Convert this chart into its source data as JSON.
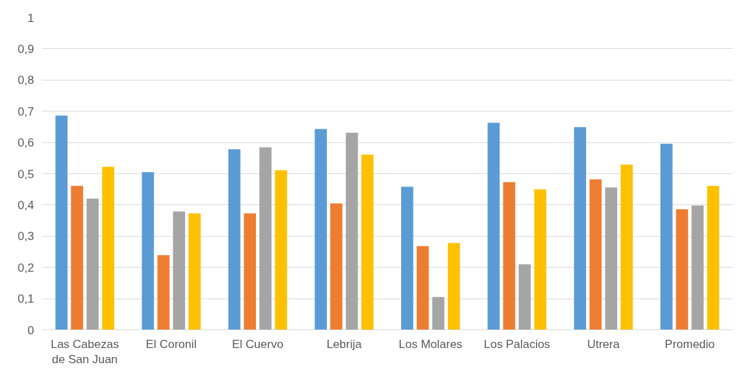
{
  "chart_data": {
    "type": "bar",
    "categories": [
      "Las Cabezas\nde San Juan",
      "El Coronil",
      "El Cuervo",
      "Lebrija",
      "Los Molares",
      "Los Palacios",
      "Utrera",
      "Promedio"
    ],
    "series": [
      {
        "color": "#5b9bd5",
        "values": [
          0.686,
          0.505,
          0.578,
          0.643,
          0.458,
          0.663,
          0.649,
          0.596
        ]
      },
      {
        "color": "#ed7d31",
        "values": [
          0.461,
          0.239,
          0.373,
          0.405,
          0.268,
          0.473,
          0.482,
          0.386
        ]
      },
      {
        "color": "#a5a5a5",
        "values": [
          0.42,
          0.379,
          0.584,
          0.631,
          0.105,
          0.21,
          0.456,
          0.398
        ]
      },
      {
        "color": "#ffc000",
        "values": [
          0.522,
          0.373,
          0.511,
          0.561,
          0.278,
          0.45,
          0.529,
          0.461
        ]
      }
    ],
    "ylim": [
      0,
      1
    ],
    "yticks": [
      0,
      {
        "value": 0.1,
        "label": "0,1"
      },
      {
        "value": 0.2,
        "label": "0,2"
      },
      {
        "value": 0.3,
        "label": "0,3"
      },
      {
        "value": 0.4,
        "label": "0,4"
      },
      {
        "value": 0.5,
        "label": "0,5"
      },
      {
        "value": 0.6,
        "label": "0,6"
      },
      {
        "value": 0.7,
        "label": "0,7"
      },
      {
        "value": 0.8,
        "label": "0,8"
      },
      {
        "value": 0.9,
        "label": "0,9"
      },
      1
    ],
    "grid": "y"
  }
}
